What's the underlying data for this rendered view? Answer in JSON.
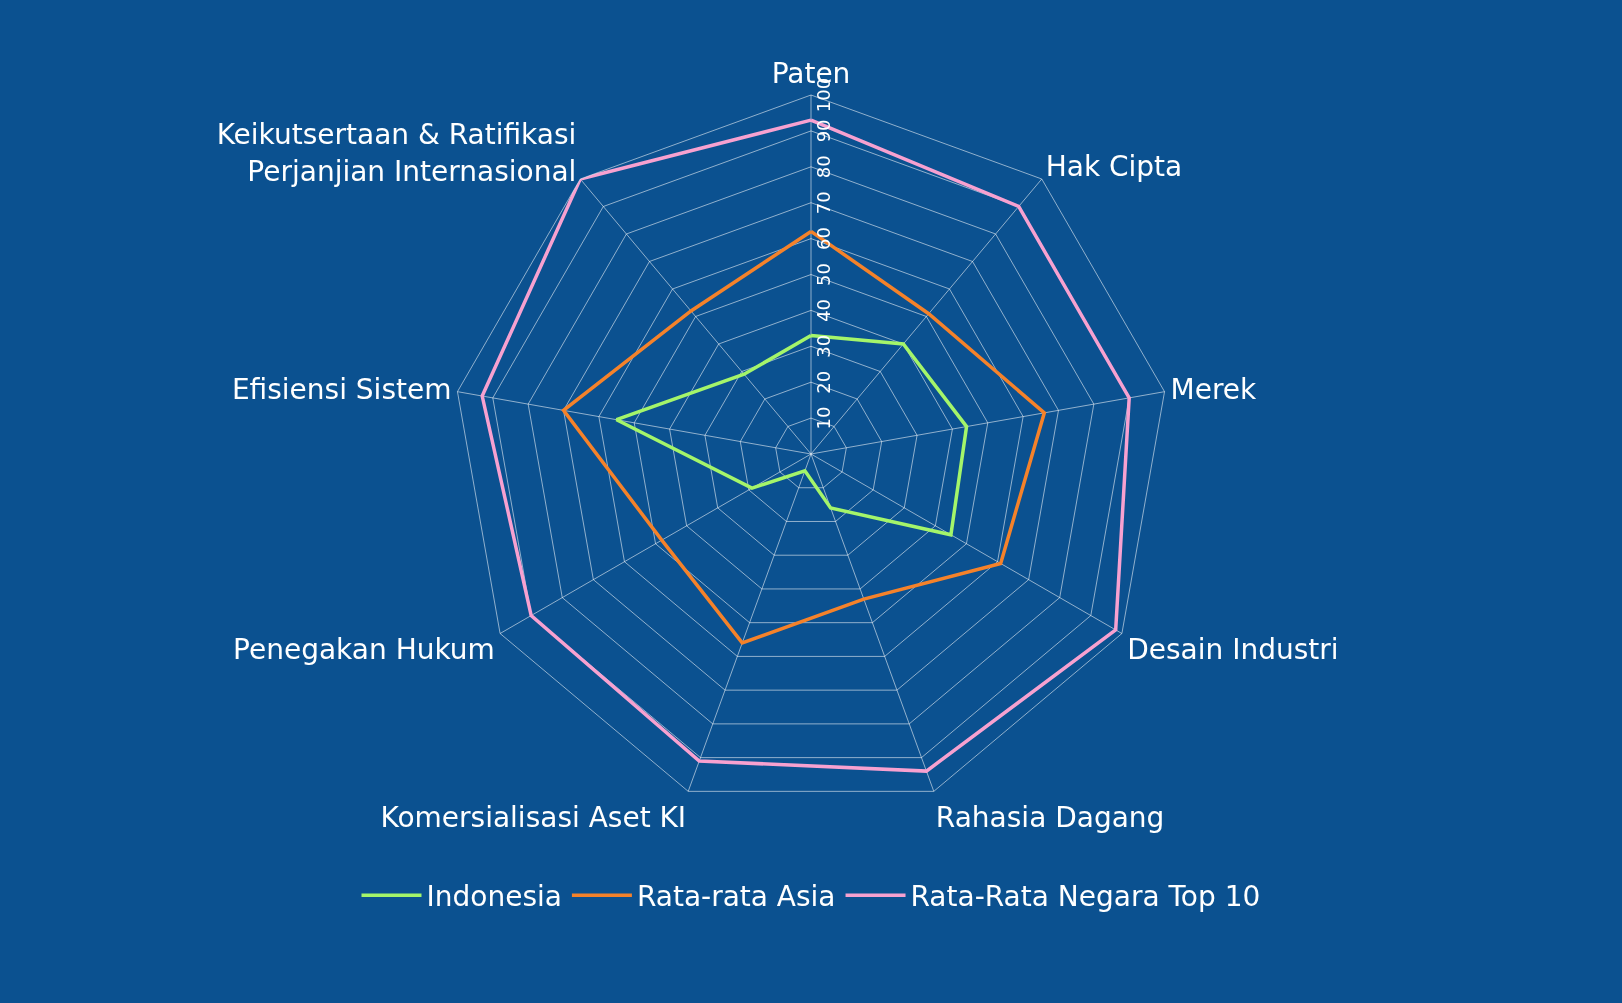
{
  "chart_data": {
    "type": "radar",
    "categories": [
      "Paten",
      "Hak Cipta",
      "Merek",
      "Desain Industri",
      "Rahasia Dagang",
      "Komersialisasi Aset KI",
      "Penegakan Hukum",
      "Efisiensi Sistem",
      "Keikutsertaan & Ratifikasi\nPerjanjian Internasional"
    ],
    "series": [
      {
        "name": "Indonesia",
        "color": "#a4f56a",
        "values": [
          33,
          40,
          44,
          45,
          16,
          5,
          19,
          55,
          29
        ]
      },
      {
        "name": "Rata-rata Asia",
        "color": "#f5822a",
        "values": [
          62,
          51,
          66,
          61,
          43,
          56,
          48,
          70,
          52
        ]
      },
      {
        "name": "Rata-Rata Negara Top 10",
        "color": "#f7a1d0",
        "values": [
          93,
          90,
          90,
          98,
          94,
          91,
          90,
          93,
          100
        ]
      }
    ],
    "ylim": [
      0,
      100
    ],
    "yticks": [
      10,
      20,
      30,
      40,
      50,
      60,
      70,
      80,
      90,
      100
    ],
    "grid": true,
    "legend": "bottom",
    "marker": "none",
    "line_style": "solid"
  }
}
